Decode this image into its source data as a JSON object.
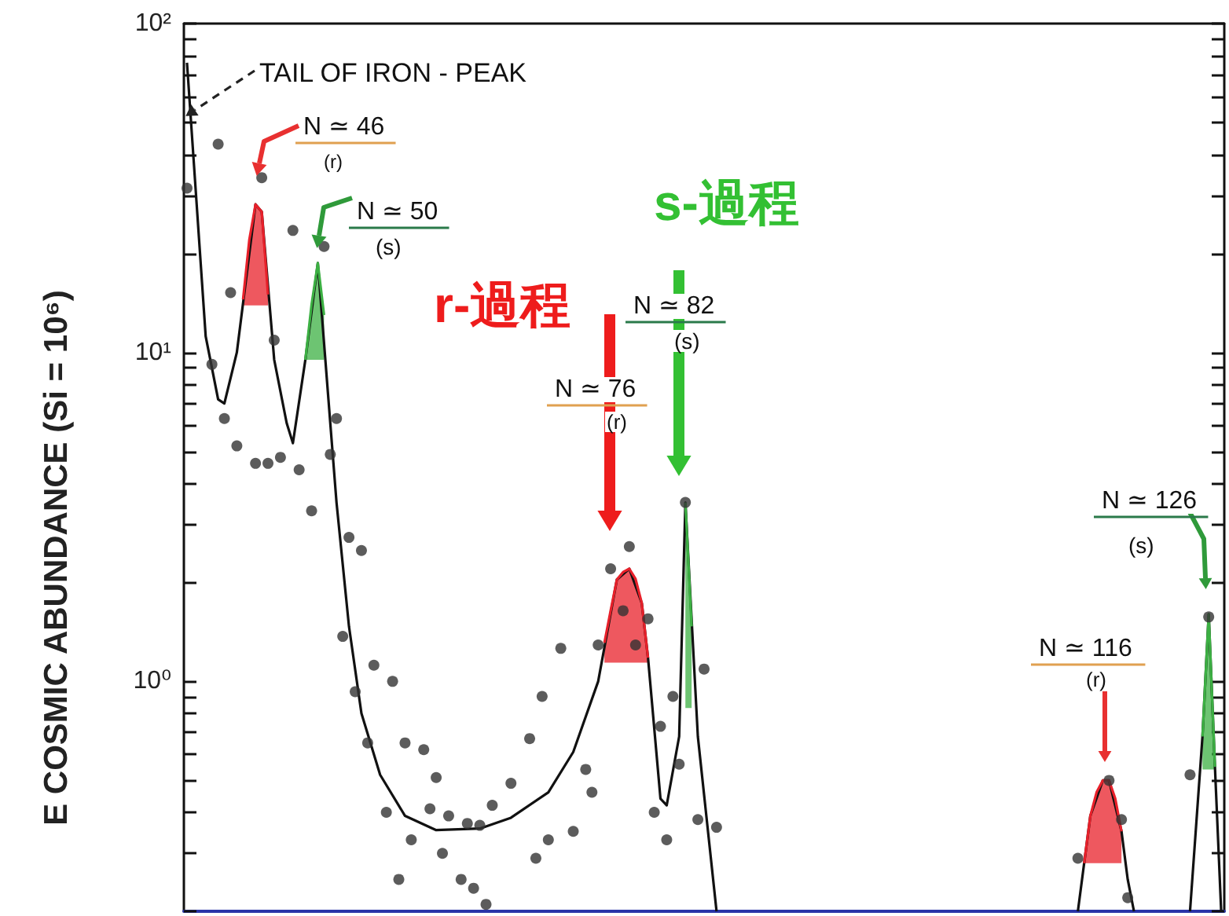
{
  "chart_data": {
    "type": "line",
    "ylabel": "E COSMIC ABUNDANCE (Si = 10⁶)",
    "log": "y",
    "tick_labels": "y",
    "categories": [
      null,
      null,
      null,
      null,
      null,
      null,
      null,
      null,
      null,
      null,
      null,
      null,
      null,
      null,
      null,
      null,
      null,
      null,
      null,
      null,
      null,
      null,
      null,
      null,
      null,
      null,
      null,
      null,
      null,
      null,
      null,
      null,
      null,
      null,
      null,
      null,
      null,
      null,
      null,
      null,
      null,
      null,
      null,
      null,
      null,
      null,
      null,
      null,
      null,
      null,
      null,
      null,
      null,
      null,
      null,
      null,
      null,
      null,
      null,
      null,
      null,
      null,
      null,
      null,
      null,
      null,
      null,
      null,
      null,
      null,
      null,
      null,
      null,
      null,
      null,
      null,
      null,
      null,
      null,
      null,
      null,
      null,
      null,
      null,
      null,
      null,
      null,
      null,
      null,
      null,
      null,
      null,
      null,
      null,
      null,
      null,
      null,
      null,
      null,
      null,
      null,
      null,
      null,
      null,
      null,
      null,
      null,
      null,
      null,
      null,
      null,
      null,
      null,
      null,
      null,
      null,
      null,
      null,
      null,
      null,
      null,
      null,
      null,
      null,
      null,
      null,
      null,
      null,
      null,
      null,
      null,
      null,
      null,
      null,
      null,
      null,
      null,
      null,
      null,
      null,
      null,
      null,
      null,
      null,
      null,
      null,
      null,
      null,
      null,
      null,
      null,
      null,
      null,
      null,
      null,
      null,
      null,
      null,
      null,
      null,
      null,
      null,
      null,
      null,
      null,
      null,
      null
    ],
    "ylim": [
      0.2,
      100
    ],
    "yticks": [
      {
        "value": 0.2,
        "label": null
      },
      {
        "value": 0.3,
        "label": null
      },
      {
        "value": 0.4,
        "label": null
      },
      {
        "value": 0.5,
        "label": null
      },
      {
        "value": 0.6,
        "label": null
      },
      {
        "value": 0.7,
        "label": null
      },
      {
        "value": 0.8,
        "label": null
      },
      {
        "value": 0.9,
        "label": null
      },
      {
        "value": 1,
        "label": "10⁰"
      },
      {
        "value": 2,
        "label": null
      },
      {
        "value": 3,
        "label": null
      },
      {
        "value": 4,
        "label": null
      },
      {
        "value": 5,
        "label": null
      },
      {
        "value": 6,
        "label": null
      },
      {
        "value": 7,
        "label": null
      },
      {
        "value": 8,
        "label": null
      },
      {
        "value": 9,
        "label": null
      },
      {
        "value": 10,
        "label": "10¹"
      },
      {
        "value": 20,
        "label": null
      },
      {
        "value": 30,
        "label": null
      },
      {
        "value": 40,
        "label": null
      },
      {
        "value": 50,
        "label": null
      },
      {
        "value": 60,
        "label": null
      },
      {
        "value": 70,
        "label": null
      },
      {
        "value": 80,
        "label": null
      },
      {
        "value": 90,
        "label": null
      },
      {
        "value": 100,
        "label": "10²"
      }
    ],
    "annotations": [
      "TAIL OF IRON - PEAK",
      "N ≃ 46",
      "(r)",
      "N ≃ 50",
      "(s)",
      "r-過程",
      "s-過程",
      "N ≃ 82",
      "(s)",
      "N ≃ 76",
      "(r)",
      "N ≃ 126",
      "(s)",
      "N ≃ 116",
      "(r)"
    ],
    "series": [
      {
        "color": "#111111",
        "marker": "none",
        "values": [
          76,
          null,
          null,
          11.2,
          null,
          7.2,
          7.0,
          null,
          10,
          null,
          null,
          28.2,
          26.8,
          null,
          9.5,
          null,
          6.1,
          5.3,
          null,
          9.5,
          null,
          18.7,
          null,
          6.1,
          3.5,
          null,
          1.47,
          null,
          0.8,
          null,
          null,
          0.52,
          null,
          null,
          null,
          0.39,
          null,
          null,
          null,
          null,
          0.353,
          null,
          null,
          null,
          null,
          null,
          null,
          0.357,
          null,
          null,
          null,
          null,
          0.385,
          null,
          null,
          null,
          null,
          null,
          0.46,
          null,
          null,
          null,
          0.61,
          null,
          null,
          null,
          1.0,
          null,
          null,
          2.04,
          null,
          2.2,
          null,
          1.73,
          1.18,
          null,
          0.44,
          0.42,
          null,
          0.68,
          3.5,
          null,
          0.68,
          null,
          null,
          0.2,
          null,
          null,
          null,
          null,
          null,
          null,
          null,
          null,
          null,
          null,
          null,
          null,
          null,
          null,
          null,
          null,
          null,
          null,
          null,
          null,
          null,
          null,
          null,
          null,
          null,
          null,
          null,
          null,
          null,
          null,
          null,
          null,
          null,
          null,
          null,
          null,
          null,
          null,
          null,
          null,
          null,
          null,
          null,
          null,
          null,
          null,
          null,
          null,
          null,
          null,
          null,
          null,
          null,
          null,
          null,
          null,
          null,
          null,
          null,
          null,
          null,
          null,
          null,
          null,
          null,
          null,
          null,
          null,
          null,
          null,
          null,
          null,
          null,
          null,
          null,
          null,
          null,
          null,
          null,
          null,
          null
        ]
      },
      {
        "color": "#111111",
        "marker": "none",
        "values": [
          null,
          null,
          null,
          null,
          null,
          null,
          null,
          null,
          null,
          null,
          null,
          null,
          null,
          null,
          null,
          null,
          null,
          null,
          null,
          null,
          null,
          null,
          null,
          null,
          null,
          null,
          null,
          null,
          null,
          null,
          null,
          null,
          null,
          null,
          null,
          null,
          null,
          null,
          null,
          null,
          null,
          null,
          null,
          null,
          null,
          null,
          null,
          null,
          null,
          null,
          null,
          null,
          null,
          null,
          null,
          null,
          null,
          null,
          null,
          null,
          null,
          null,
          null,
          null,
          null,
          null,
          null,
          null,
          null,
          null,
          null,
          null,
          null,
          null,
          null,
          null,
          null,
          null,
          null,
          null,
          null,
          null,
          null,
          null,
          null,
          null,
          null,
          null,
          null,
          null,
          null,
          null,
          null,
          null,
          null,
          null,
          null,
          null,
          null,
          null,
          null,
          null,
          null,
          null,
          null,
          null,
          null,
          null,
          null,
          null,
          null,
          null,
          null,
          null,
          null,
          null,
          null,
          null,
          null,
          null,
          null,
          null,
          null,
          null,
          null,
          null,
          null,
          null,
          null,
          null,
          null,
          null,
          null,
          null,
          null,
          null,
          null,
          null,
          null,
          null,
          null,
          null,
          null,
          0.2,
          null,
          0.39,
          null,
          0.5,
          0.5,
          null,
          0.35,
          0.25,
          0.2,
          null,
          null,
          null,
          null,
          null,
          null,
          null,
          null,
          null,
          null,
          null,
          null,
          null,
          null
        ]
      },
      {
        "color": "#111111",
        "marker": "none",
        "values": [
          null,
          null,
          null,
          null,
          null,
          null,
          null,
          null,
          null,
          null,
          null,
          null,
          null,
          null,
          null,
          null,
          null,
          null,
          null,
          null,
          null,
          null,
          null,
          null,
          null,
          null,
          null,
          null,
          null,
          null,
          null,
          null,
          null,
          null,
          null,
          null,
          null,
          null,
          null,
          null,
          null,
          null,
          null,
          null,
          null,
          null,
          null,
          null,
          null,
          null,
          null,
          null,
          null,
          null,
          null,
          null,
          null,
          null,
          null,
          null,
          null,
          null,
          null,
          null,
          null,
          null,
          null,
          null,
          null,
          null,
          null,
          null,
          null,
          null,
          null,
          null,
          null,
          null,
          null,
          null,
          null,
          null,
          null,
          null,
          null,
          null,
          null,
          null,
          null,
          null,
          null,
          null,
          null,
          null,
          null,
          null,
          null,
          null,
          null,
          null,
          null,
          null,
          null,
          null,
          null,
          null,
          null,
          null,
          null,
          null,
          null,
          null,
          null,
          null,
          null,
          null,
          null,
          null,
          null,
          null,
          null,
          null,
          null,
          null,
          null,
          null,
          null,
          null,
          null,
          null,
          null,
          null,
          null,
          null,
          null,
          null,
          null,
          null,
          null,
          null,
          null,
          null,
          null,
          null,
          null,
          null,
          null,
          null,
          null,
          null,
          null,
          null,
          null,
          null,
          null,
          null,
          null,
          null,
          null,
          null,
          null,
          0.2,
          null,
          0.68,
          1.6,
          0.55,
          0.2
        ]
      },
      {
        "color": "#e8202a",
        "marker": "none",
        "values": [
          null,
          null,
          null,
          null,
          null,
          null,
          null,
          null,
          null,
          14.5,
          22,
          28.2,
          26.8,
          15,
          null,
          null,
          null,
          null,
          null,
          null,
          null,
          null,
          null,
          null,
          null,
          null,
          null,
          null,
          null,
          null,
          null,
          null,
          null,
          null,
          null,
          null,
          null,
          null,
          null,
          null,
          null,
          null,
          null,
          null,
          null,
          null,
          null,
          null,
          null,
          null,
          null,
          null,
          null,
          null,
          null,
          null,
          null,
          null,
          null,
          null,
          null,
          null,
          null,
          null,
          null,
          null,
          null,
          1.31,
          1.64,
          2.04,
          2.15,
          2.2,
          2.05,
          1.73,
          1.18,
          null,
          null,
          null,
          null,
          null,
          null,
          null,
          null,
          null,
          null,
          null,
          null,
          null,
          null,
          null,
          null,
          null,
          null,
          null,
          null,
          null,
          null,
          null,
          null,
          null,
          null,
          null,
          null,
          null,
          null,
          null,
          null,
          null,
          null,
          null,
          null,
          null,
          null,
          null,
          null,
          null,
          null,
          null,
          null,
          null,
          null,
          null,
          null,
          null,
          null,
          null,
          null,
          null,
          null,
          null,
          null,
          null,
          null,
          null,
          null,
          null,
          null,
          null,
          null,
          null,
          null,
          null,
          null,
          null,
          0.28,
          0.39,
          0.46,
          0.5,
          0.5,
          0.44,
          0.35,
          null,
          null,
          null,
          null,
          null,
          null,
          null,
          null,
          null,
          null,
          null,
          null,
          null,
          null,
          null,
          null
        ],
        "upper": [
          null,
          null,
          null,
          null,
          null,
          null,
          null,
          null,
          null,
          14.5,
          22,
          28.2,
          26.8,
          15,
          null,
          null,
          null,
          null,
          null,
          null,
          null,
          null,
          null,
          null,
          null,
          null,
          null,
          null,
          null,
          null,
          null,
          null,
          null,
          null,
          null,
          null,
          null,
          null,
          null,
          null,
          null,
          null,
          null,
          null,
          null,
          null,
          null,
          null,
          null,
          null,
          null,
          null,
          null,
          null,
          null,
          null,
          null,
          null,
          null,
          null,
          null,
          null,
          null,
          null,
          null,
          null,
          null,
          1.31,
          1.64,
          2.04,
          2.15,
          2.2,
          2.05,
          1.73,
          1.18,
          null,
          null,
          null,
          null,
          null,
          null,
          null,
          null,
          null,
          null,
          null,
          null,
          null,
          null,
          null,
          null,
          null,
          null,
          null,
          null,
          null,
          null,
          null,
          null,
          null,
          null,
          null,
          null,
          null,
          null,
          null,
          null,
          null,
          null,
          null,
          null,
          null,
          null,
          null,
          null,
          null,
          null,
          null,
          null,
          null,
          null,
          null,
          null,
          null,
          null,
          null,
          null,
          null,
          null,
          null,
          null,
          null,
          null,
          null,
          null,
          null,
          null,
          null,
          null,
          null,
          null,
          null,
          null,
          null,
          0.28,
          0.39,
          0.46,
          0.5,
          0.5,
          0.44,
          0.35,
          null,
          null,
          null,
          null,
          null,
          null,
          null,
          null,
          null,
          null,
          null,
          null,
          null,
          null,
          null,
          null
        ],
        "lower": [
          null,
          null,
          null,
          null,
          null,
          null,
          null,
          null,
          null,
          13.9,
          13.9,
          13.9,
          13.9,
          13.9,
          null,
          null,
          null,
          null,
          null,
          null,
          null,
          null,
          null,
          null,
          null,
          null,
          null,
          null,
          null,
          null,
          null,
          null,
          null,
          null,
          null,
          null,
          null,
          null,
          null,
          null,
          null,
          null,
          null,
          null,
          null,
          null,
          null,
          null,
          null,
          null,
          null,
          null,
          null,
          null,
          null,
          null,
          null,
          null,
          null,
          null,
          null,
          null,
          null,
          null,
          null,
          null,
          null,
          1.14,
          1.14,
          1.14,
          1.14,
          1.14,
          1.14,
          1.14,
          1.14,
          null,
          null,
          null,
          null,
          null,
          null,
          null,
          null,
          null,
          null,
          null,
          null,
          null,
          null,
          null,
          null,
          null,
          null,
          null,
          null,
          null,
          null,
          null,
          null,
          null,
          null,
          null,
          null,
          null,
          null,
          null,
          null,
          null,
          null,
          null,
          null,
          null,
          null,
          null,
          null,
          null,
          null,
          null,
          null,
          null,
          null,
          null,
          null,
          null,
          null,
          null,
          null,
          null,
          null,
          null,
          null,
          null,
          null,
          null,
          null,
          null,
          null,
          null,
          null,
          null,
          null,
          null,
          null,
          null,
          0.28,
          0.28,
          0.28,
          0.28,
          0.28,
          0.28,
          0.28,
          null,
          null,
          null,
          null,
          null,
          null,
          null,
          null,
          null,
          null,
          null,
          null,
          null,
          null,
          null,
          null
        ]
      },
      {
        "color": "#3cb043",
        "marker": "none",
        "values": [
          null,
          null,
          null,
          null,
          null,
          null,
          null,
          null,
          null,
          null,
          null,
          null,
          null,
          null,
          null,
          null,
          null,
          null,
          null,
          9.5,
          14,
          18.7,
          13,
          null,
          null,
          null,
          null,
          null,
          null,
          null,
          null,
          null,
          null,
          null,
          null,
          null,
          null,
          null,
          null,
          null,
          null,
          null,
          null,
          null,
          null,
          null,
          null,
          null,
          null,
          null,
          null,
          null,
          null,
          null,
          null,
          null,
          null,
          null,
          null,
          null,
          null,
          null,
          null,
          null,
          null,
          null,
          null,
          null,
          null,
          null,
          null,
          null,
          null,
          null,
          null,
          null,
          null,
          null,
          null,
          null,
          3.5,
          1.47,
          null,
          null,
          null,
          null,
          null,
          null,
          null,
          null,
          null,
          null,
          null,
          null,
          null,
          null,
          null,
          null,
          null,
          null,
          null,
          null,
          null,
          null,
          null,
          null,
          null,
          null,
          null,
          null,
          null,
          null,
          null,
          null,
          null,
          null,
          null,
          null,
          null,
          null,
          null,
          null,
          null,
          null,
          null,
          null,
          null,
          null,
          null,
          null,
          null,
          null,
          null,
          null,
          null,
          null,
          null,
          null,
          null,
          null,
          null,
          null,
          null,
          null,
          null,
          null,
          null,
          null,
          null,
          null,
          null,
          null,
          null,
          null,
          null,
          null,
          null,
          null,
          null,
          null,
          null,
          null,
          null,
          0.68,
          1.6,
          0.55,
          null
        ],
        "upper": [
          null,
          null,
          null,
          null,
          null,
          null,
          null,
          null,
          null,
          null,
          null,
          null,
          null,
          null,
          null,
          null,
          null,
          null,
          null,
          9.5,
          14,
          18.7,
          13,
          null,
          null,
          null,
          null,
          null,
          null,
          null,
          null,
          null,
          null,
          null,
          null,
          null,
          null,
          null,
          null,
          null,
          null,
          null,
          null,
          null,
          null,
          null,
          null,
          null,
          null,
          null,
          null,
          null,
          null,
          null,
          null,
          null,
          null,
          null,
          null,
          null,
          null,
          null,
          null,
          null,
          null,
          null,
          null,
          null,
          null,
          null,
          null,
          null,
          null,
          null,
          null,
          null,
          null,
          null,
          null,
          null,
          3.5,
          1.47,
          null,
          null,
          null,
          null,
          null,
          null,
          null,
          null,
          null,
          null,
          null,
          null,
          null,
          null,
          null,
          null,
          null,
          null,
          null,
          null,
          null,
          null,
          null,
          null,
          null,
          null,
          null,
          null,
          null,
          null,
          null,
          null,
          null,
          null,
          null,
          null,
          null,
          null,
          null,
          null,
          null,
          null,
          null,
          null,
          null,
          null,
          null,
          null,
          null,
          null,
          null,
          null,
          null,
          null,
          null,
          null,
          null,
          null,
          null,
          null,
          null,
          null,
          null,
          null,
          null,
          null,
          null,
          null,
          null,
          null,
          null,
          null,
          null,
          null,
          null,
          null,
          null,
          null,
          null,
          null,
          null,
          0.68,
          1.6,
          0.55,
          null
        ],
        "lower": [
          null,
          null,
          null,
          null,
          null,
          null,
          null,
          null,
          null,
          null,
          null,
          null,
          null,
          null,
          null,
          null,
          null,
          null,
          null,
          9.5,
          9.5,
          9.5,
          9.5,
          null,
          null,
          null,
          null,
          null,
          null,
          null,
          null,
          null,
          null,
          null,
          null,
          null,
          null,
          null,
          null,
          null,
          null,
          null,
          null,
          null,
          null,
          null,
          null,
          null,
          null,
          null,
          null,
          null,
          null,
          null,
          null,
          null,
          null,
          null,
          null,
          null,
          null,
          null,
          null,
          null,
          null,
          null,
          null,
          null,
          null,
          null,
          null,
          null,
          null,
          null,
          null,
          null,
          null,
          null,
          null,
          null,
          0.83,
          0.83,
          null,
          null,
          null,
          null,
          null,
          null,
          null,
          null,
          null,
          null,
          null,
          null,
          null,
          null,
          null,
          null,
          null,
          null,
          null,
          null,
          null,
          null,
          null,
          null,
          null,
          null,
          null,
          null,
          null,
          null,
          null,
          null,
          null,
          null,
          null,
          null,
          null,
          null,
          null,
          null,
          null,
          null,
          null,
          null,
          null,
          null,
          null,
          null,
          null,
          null,
          null,
          null,
          null,
          null,
          null,
          null,
          null,
          null,
          null,
          null,
          null,
          null,
          null,
          null,
          null,
          null,
          null,
          null,
          null,
          null,
          null,
          null,
          null,
          null,
          null,
          null,
          null,
          null,
          null,
          null,
          null,
          0.54,
          0.54,
          0.54,
          null
        ]
      },
      {
        "type": "scatter",
        "color": "#333333",
        "marker": "circle",
        "values": [
          31.6,
          null,
          null,
          null,
          9.2,
          43,
          6.3,
          15.2,
          5.2,
          null,
          null,
          4.6,
          34,
          4.6,
          10.9,
          4.8,
          null,
          23.5,
          4.4,
          null,
          3.3,
          null,
          21,
          4.9,
          6.3,
          1.37,
          2.74,
          0.93,
          2.5,
          0.65,
          1.12,
          null,
          0.4,
          1.0,
          0.25,
          0.65,
          0.33,
          null,
          0.62,
          0.41,
          0.51,
          0.3,
          0.39,
          null,
          0.25,
          0.37,
          0.235,
          0.365,
          0.21,
          0.42,
          null,
          null,
          0.49,
          null,
          null,
          0.67,
          0.29,
          0.9,
          0.33,
          null,
          1.26,
          null,
          0.35,
          null,
          0.54,
          0.46,
          1.29,
          null,
          2.2,
          null,
          1.64,
          2.57,
          1.29,
          null,
          1.55,
          0.4,
          0.73,
          0.33,
          0.9,
          0.56,
          3.5,
          null,
          0.38,
          1.09,
          null,
          0.36,
          null,
          null,
          null,
          null,
          null,
          null,
          null,
          null,
          null,
          null,
          null,
          null,
          null,
          null,
          null,
          null,
          null,
          null,
          null,
          null,
          null,
          null,
          null,
          null,
          null,
          null,
          null,
          null,
          null,
          null,
          null,
          null,
          null,
          null,
          null,
          null,
          null,
          null,
          null,
          null,
          null,
          null,
          null,
          null,
          null,
          null,
          null,
          null,
          null,
          null,
          null,
          null,
          null,
          null,
          null,
          null,
          null,
          0.29,
          null,
          null,
          null,
          null,
          0.5,
          null,
          0.38,
          0.22,
          null,
          null,
          null,
          null,
          null,
          null,
          null,
          null,
          null,
          0.52,
          null,
          null,
          1.57,
          null,
          null
        ]
      }
    ]
  }
}
